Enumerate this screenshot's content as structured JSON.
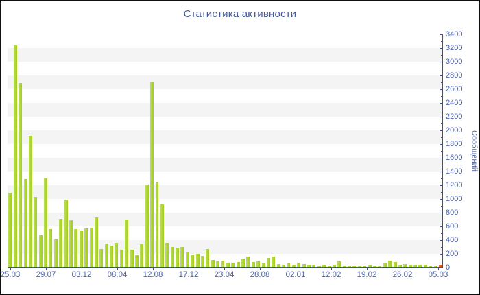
{
  "title": "Статистика активности",
  "colors": {
    "bar": "#a9d32c",
    "highlight_bar": "#e05526",
    "axis_line": "#3f5086",
    "tick_text": "#4c63a6",
    "title_text": "#44599b",
    "band": "#f4f4f4"
  },
  "chart_data": {
    "type": "bar",
    "title": "Статистика активности",
    "ylabel": "Сообщений",
    "xlabel": "",
    "ylim": [
      0,
      3400
    ],
    "y_tick_step": 200,
    "y_minor_step": 100,
    "grid": "horizontal-bands",
    "legend": "none",
    "y_tick_labels": [
      "0",
      "200",
      "400",
      "600",
      "800",
      "1000",
      "1200",
      "1400",
      "1600",
      "1800",
      "2000",
      "2200",
      "2400",
      "2600",
      "2800",
      "3000",
      "3200",
      "3400"
    ],
    "x_tick_labels": [
      "25.03",
      "29.07",
      "03.12",
      "08.04",
      "12.08",
      "17.12",
      "23.04",
      "28.08",
      "02.01",
      "12.02",
      "19.02",
      "26.02",
      "05.03"
    ],
    "highlight_last": true,
    "values": [
      1090,
      3240,
      2690,
      1290,
      1920,
      1030,
      475,
      1300,
      560,
      415,
      715,
      990,
      690,
      565,
      545,
      575,
      580,
      735,
      270,
      350,
      325,
      365,
      257,
      700,
      263,
      183,
      340,
      1215,
      2705,
      1255,
      925,
      357,
      300,
      285,
      300,
      223,
      183,
      200,
      173,
      273,
      113,
      90,
      100,
      73,
      67,
      85,
      130,
      165,
      85,
      95,
      65,
      145,
      165,
      55,
      45,
      65,
      40,
      75,
      55,
      40,
      45,
      30,
      40,
      30,
      37,
      95,
      33,
      23,
      30,
      23,
      30,
      37,
      23,
      30,
      57,
      97,
      83,
      40,
      50,
      37,
      43,
      37,
      43,
      30,
      23,
      37
    ]
  }
}
